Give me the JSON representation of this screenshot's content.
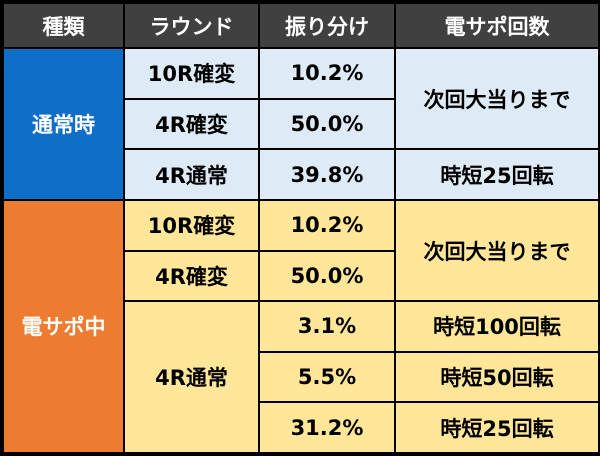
{
  "headers": [
    "種類",
    "ラウンド",
    "振り分け",
    "電サポ回数"
  ],
  "normal": {
    "mode": "通常時",
    "rows": [
      {
        "round": "10R確変",
        "share": "10.2%"
      },
      {
        "round": "4R確変",
        "share": "50.0%"
      },
      {
        "round": "4R通常",
        "share": "39.8%"
      }
    ],
    "support_a": "次回大当りまで",
    "support_b": "時短25回転"
  },
  "dsp": {
    "mode": "電サポ中",
    "rows": [
      {
        "round": "10R確変",
        "share": "10.2%"
      },
      {
        "round": "4R確変",
        "share": "50.0%"
      },
      {
        "round": "4R通常",
        "share": "3.1%"
      },
      {
        "share": "5.5%"
      },
      {
        "share": "31.2%"
      }
    ],
    "support_a": "次回大当りまで",
    "support_b": "時短100回転",
    "support_c": "時短50回転",
    "support_d": "時短25回転"
  }
}
